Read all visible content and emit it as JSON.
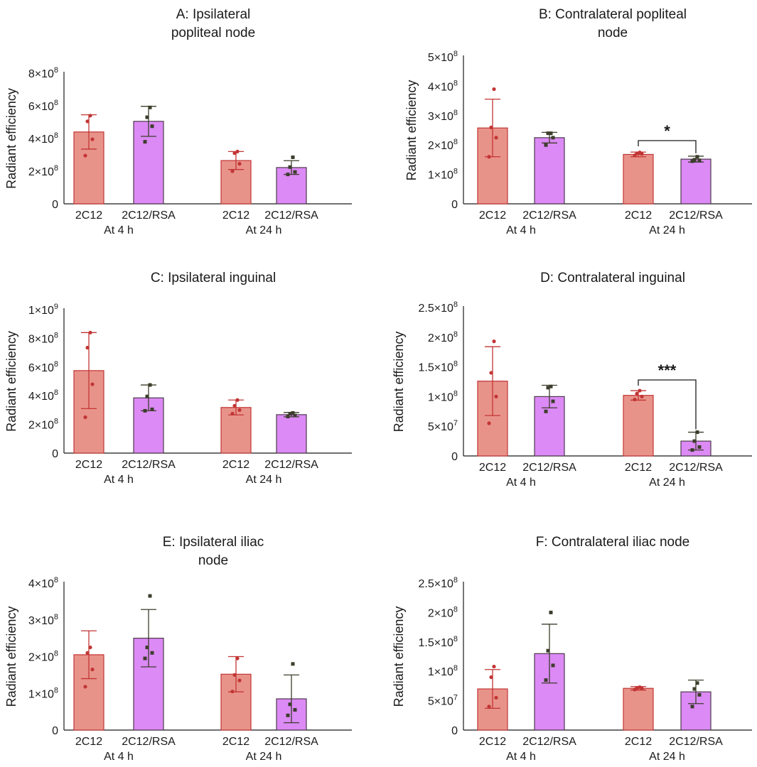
{
  "colors": {
    "c2c12_fill": "#e8938a",
    "c2c12_stroke": "#c23535",
    "rsa_fill": "#dc8af5",
    "rsa_stroke": "#4d3a4d",
    "rsa_whisker": "#3d3d2c",
    "axis": "#1a1a1a"
  },
  "chart_data": [
    {
      "panel": "A",
      "type": "bar",
      "title_lines": [
        "A: Ipsilateral",
        "popliteal node"
      ],
      "ylabel": "Radiant efficiency",
      "yticks": [
        {
          "value": 0,
          "label": "0"
        },
        {
          "value": 200000000,
          "label": "2×10",
          "exp": "8"
        },
        {
          "value": 400000000,
          "label": "4×10",
          "exp": "8"
        },
        {
          "value": 600000000,
          "label": "6×10",
          "exp": "8"
        },
        {
          "value": 800000000,
          "label": "8×10",
          "exp": "8"
        }
      ],
      "ylim": [
        0,
        800000000
      ],
      "groups": [
        "At 4 h",
        "At 24 h"
      ],
      "categories": [
        "2C12",
        "2C12/RSA",
        "2C12",
        "2C12/RSA"
      ],
      "series": [
        {
          "name": "2C12",
          "group": 0,
          "mean": 440000000,
          "sd": 105000000,
          "points": [
            295000000,
            395000000,
            505000000,
            540000000
          ]
        },
        {
          "name": "2C12/RSA",
          "group": 0,
          "mean": 505000000,
          "sd": 92000000,
          "points": [
            380000000,
            475000000,
            530000000,
            590000000
          ]
        },
        {
          "name": "2C12",
          "group": 1,
          "mean": 265000000,
          "sd": 55000000,
          "points": [
            200000000,
            245000000,
            310000000,
            320000000
          ]
        },
        {
          "name": "2C12/RSA",
          "group": 1,
          "mean": 222000000,
          "sd": 42000000,
          "points": [
            180000000,
            195000000,
            225000000,
            285000000
          ]
        }
      ],
      "significance": []
    },
    {
      "panel": "B",
      "type": "bar",
      "title_lines": [
        "B: Contralateral popliteal",
        "node"
      ],
      "ylabel": "Radiant efficiency",
      "yticks": [
        {
          "value": 0,
          "label": "0"
        },
        {
          "value": 100000000,
          "label": "1×10",
          "exp": "8"
        },
        {
          "value": 200000000,
          "label": "2×10",
          "exp": "8"
        },
        {
          "value": 300000000,
          "label": "3×10",
          "exp": "8"
        },
        {
          "value": 400000000,
          "label": "4×10",
          "exp": "8"
        },
        {
          "value": 500000000,
          "label": "5×10",
          "exp": "8"
        }
      ],
      "ylim": [
        0,
        500000000
      ],
      "groups": [
        "At 4 h",
        "At 24 h"
      ],
      "categories": [
        "2C12",
        "2C12/RSA",
        "2C12",
        "2C12/RSA"
      ],
      "series": [
        {
          "name": "2C12",
          "group": 0,
          "mean": 258000000,
          "sd": 98000000,
          "points": [
            160000000,
            225000000,
            260000000,
            390000000
          ]
        },
        {
          "name": "2C12/RSA",
          "group": 0,
          "mean": 225000000,
          "sd": 18000000,
          "points": [
            200000000,
            225000000,
            240000000,
            240000000
          ]
        },
        {
          "name": "2C12",
          "group": 1,
          "mean": 168000000,
          "sd": 8000000,
          "points": [
            165000000,
            170000000,
            172000000,
            175000000
          ]
        },
        {
          "name": "2C12/RSA",
          "group": 1,
          "mean": 152000000,
          "sd": 10000000,
          "points": [
            145000000,
            148000000,
            150000000,
            160000000
          ]
        }
      ],
      "significance": [
        {
          "from": 2,
          "to": 3,
          "y": 215000000,
          "label": "*"
        }
      ]
    },
    {
      "panel": "C",
      "type": "bar",
      "title_lines": [
        "C: Ipsilateral inguinal"
      ],
      "ylabel": "Radiant efficiency",
      "yticks": [
        {
          "value": 0,
          "label": "0"
        },
        {
          "value": 200000000,
          "label": "2×10",
          "exp": "8"
        },
        {
          "value": 400000000,
          "label": "4×10",
          "exp": "8"
        },
        {
          "value": 600000000,
          "label": "6×10",
          "exp": "8"
        },
        {
          "value": 800000000,
          "label": "8×10",
          "exp": "8"
        },
        {
          "value": 1000000000,
          "label": "1×10",
          "exp": "9"
        }
      ],
      "ylim": [
        0,
        1000000000
      ],
      "groups": [
        "At 4 h",
        "At 24 h"
      ],
      "categories": [
        "2C12",
        "2C12/RSA",
        "2C12",
        "2C12/RSA"
      ],
      "series": [
        {
          "name": "2C12",
          "group": 0,
          "mean": 575000000,
          "sd": 265000000,
          "points": [
            250000000,
            480000000,
            735000000,
            840000000
          ]
        },
        {
          "name": "2C12/RSA",
          "group": 0,
          "mean": 385000000,
          "sd": 90000000,
          "points": [
            295000000,
            305000000,
            395000000,
            475000000
          ]
        },
        {
          "name": "2C12",
          "group": 1,
          "mean": 318000000,
          "sd": 52000000,
          "points": [
            275000000,
            300000000,
            330000000,
            370000000
          ]
        },
        {
          "name": "2C12/RSA",
          "group": 1,
          "mean": 268000000,
          "sd": 15000000,
          "points": [
            255000000,
            262000000,
            275000000,
            280000000
          ]
        }
      ],
      "significance": []
    },
    {
      "panel": "D",
      "type": "bar",
      "title_lines": [
        "D: Contralateral inguinal"
      ],
      "ylabel": "Radiant efficiency",
      "yticks": [
        {
          "value": 0,
          "label": "0"
        },
        {
          "value": 50000000,
          "label": "5×10",
          "exp": "7"
        },
        {
          "value": 100000000,
          "label": "1×10",
          "exp": "8"
        },
        {
          "value": 150000000,
          "label": "1.5×10",
          "exp": "8"
        },
        {
          "value": 200000000,
          "label": "2×10",
          "exp": "8"
        },
        {
          "value": 250000000,
          "label": "2.5×10",
          "exp": "8"
        }
      ],
      "ylim": [
        0,
        250000000
      ],
      "groups": [
        "At 4 h",
        "At 24 h"
      ],
      "categories": [
        "2C12",
        "2C12/RSA",
        "2C12",
        "2C12/RSA"
      ],
      "series": [
        {
          "name": "2C12",
          "group": 0,
          "mean": 126000000,
          "sd": 58000000,
          "points": [
            55000000,
            100000000,
            140000000,
            193000000
          ]
        },
        {
          "name": "2C12/RSA",
          "group": 0,
          "mean": 100000000,
          "sd": 19000000,
          "points": [
            75000000,
            92000000,
            115000000,
            117000000
          ]
        },
        {
          "name": "2C12",
          "group": 1,
          "mean": 102000000,
          "sd": 8000000,
          "points": [
            95000000,
            100000000,
            105000000,
            110000000
          ]
        },
        {
          "name": "2C12/RSA",
          "group": 1,
          "mean": 25000000,
          "sd": 15000000,
          "points": [
            10000000,
            15000000,
            25000000,
            40000000
          ]
        }
      ],
      "significance": [
        {
          "from": 2,
          "to": 3,
          "y": 128000000,
          "label": "***"
        }
      ]
    },
    {
      "panel": "E",
      "type": "bar",
      "title_lines": [
        "E: Ipsilateral iliac",
        "node"
      ],
      "ylabel": "Radiant efficiency",
      "yticks": [
        {
          "value": 0,
          "label": "0"
        },
        {
          "value": 100000000,
          "label": "1×10",
          "exp": "8"
        },
        {
          "value": 200000000,
          "label": "2×10",
          "exp": "8"
        },
        {
          "value": 300000000,
          "label": "3×10",
          "exp": "8"
        },
        {
          "value": 400000000,
          "label": "4×10",
          "exp": "8"
        }
      ],
      "ylim": [
        0,
        400000000
      ],
      "groups": [
        "At 4 h",
        "At 24 h"
      ],
      "categories": [
        "2C12",
        "2C12/RSA",
        "2C12",
        "2C12/RSA"
      ],
      "series": [
        {
          "name": "2C12",
          "group": 0,
          "mean": 205000000,
          "sd": 65000000,
          "points": [
            118000000,
            165000000,
            210000000,
            225000000
          ]
        },
        {
          "name": "2C12/RSA",
          "group": 0,
          "mean": 250000000,
          "sd": 78000000,
          "points": [
            195000000,
            210000000,
            225000000,
            365000000
          ]
        },
        {
          "name": "2C12",
          "group": 1,
          "mean": 152000000,
          "sd": 48000000,
          "points": [
            105000000,
            135000000,
            150000000,
            195000000
          ]
        },
        {
          "name": "2C12/RSA",
          "group": 1,
          "mean": 85000000,
          "sd": 65000000,
          "points": [
            40000000,
            55000000,
            70000000,
            180000000
          ]
        }
      ],
      "significance": []
    },
    {
      "panel": "F",
      "type": "bar",
      "title_lines": [
        "F: Contralateral iliac node"
      ],
      "ylabel": "Radiant efficiency",
      "yticks": [
        {
          "value": 0,
          "label": "0"
        },
        {
          "value": 50000000,
          "label": "5×10",
          "exp": "7"
        },
        {
          "value": 100000000,
          "label": "1×10",
          "exp": "8"
        },
        {
          "value": 150000000,
          "label": "1.5×10",
          "exp": "8"
        },
        {
          "value": 200000000,
          "label": "2×10",
          "exp": "8"
        },
        {
          "value": 250000000,
          "label": "2.5×10",
          "exp": "8"
        }
      ],
      "ylim": [
        0,
        250000000
      ],
      "groups": [
        "At 4 h",
        "At 24 h"
      ],
      "categories": [
        "2C12",
        "2C12/RSA",
        "2C12",
        "2C12/RSA"
      ],
      "series": [
        {
          "name": "2C12",
          "group": 0,
          "mean": 70000000,
          "sd": 33000000,
          "points": [
            40000000,
            55000000,
            90000000,
            108000000
          ]
        },
        {
          "name": "2C12/RSA",
          "group": 0,
          "mean": 130000000,
          "sd": 50000000,
          "points": [
            85000000,
            110000000,
            135000000,
            200000000
          ]
        },
        {
          "name": "2C12",
          "group": 1,
          "mean": 71000000,
          "sd": 3000000,
          "points": [
            69000000,
            71000000,
            72000000,
            73000000
          ]
        },
        {
          "name": "2C12/RSA",
          "group": 1,
          "mean": 65000000,
          "sd": 20000000,
          "points": [
            40000000,
            60000000,
            70000000,
            80000000
          ]
        }
      ],
      "significance": []
    }
  ]
}
